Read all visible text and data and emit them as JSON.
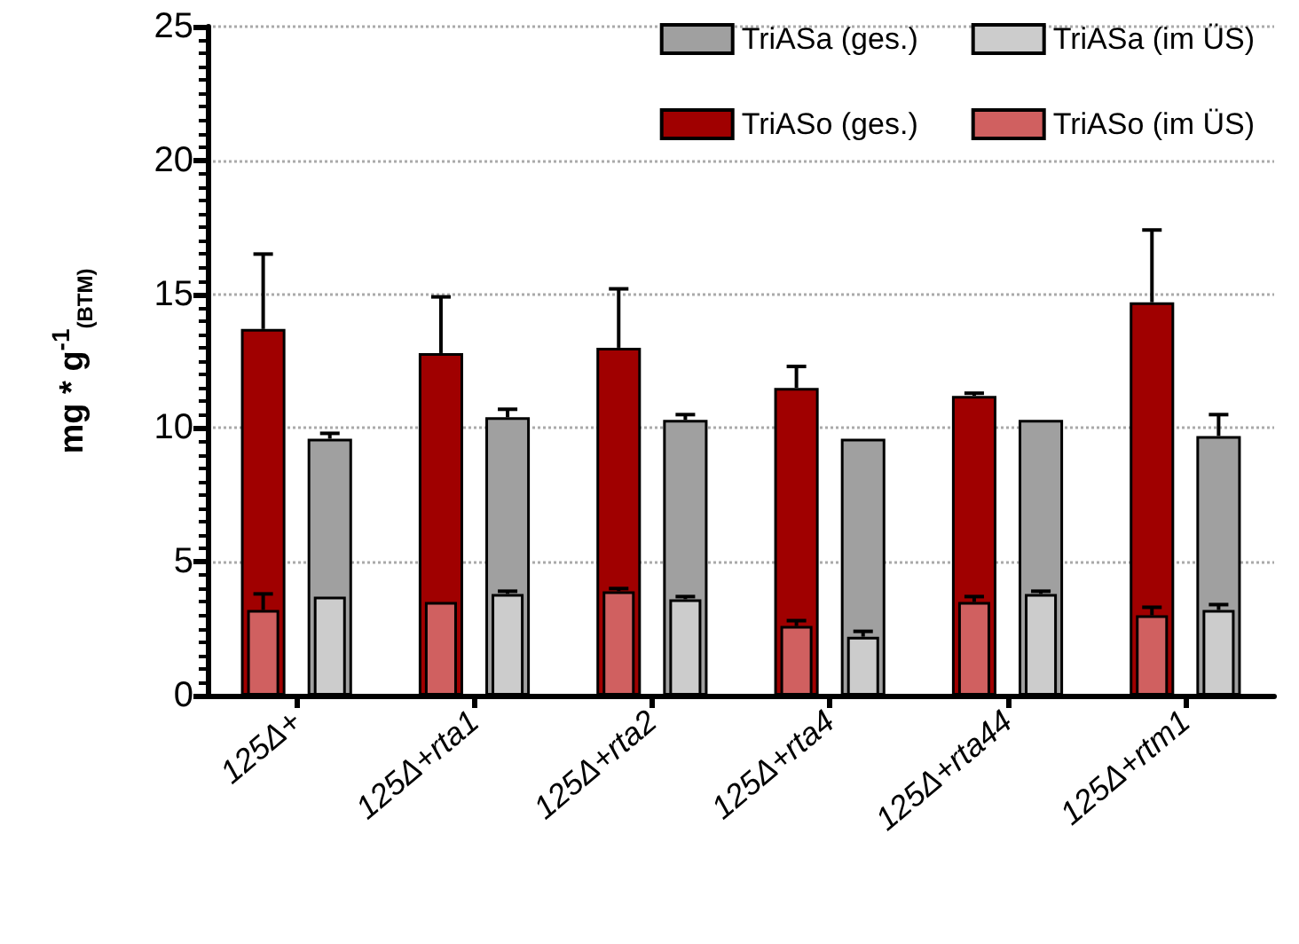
{
  "chart_data": {
    "type": "bar",
    "ylabel": "mg * g$^{-1}$$_{(BTM)}$",
    "categories": [
      "125Δ+",
      "125Δ+rta1",
      "125Δ+rta2",
      "125Δ+rta4",
      "125Δ+rta44",
      "125Δ+rtm1"
    ],
    "series": [
      {
        "name": "TriASo (ges.)",
        "color": "#a00000",
        "values": [
          13.7,
          12.8,
          13.0,
          11.5,
          11.2,
          14.7
        ],
        "errors": [
          [
            13.7,
            16.5
          ],
          [
            12.8,
            14.9
          ],
          [
            13.0,
            15.2
          ],
          [
            11.5,
            12.3
          ],
          [
            11.2,
            11.3
          ],
          [
            14.7,
            17.4
          ]
        ]
      },
      {
        "name": "TriASa (ges.)",
        "color": "#a0a0a0",
        "values": [
          9.6,
          10.4,
          10.3,
          9.6,
          10.3,
          9.7
        ],
        "errors": [
          [
            9.6,
            9.8
          ],
          [
            10.4,
            10.7
          ],
          [
            10.3,
            10.5
          ],
          null,
          null,
          [
            9.7,
            10.5
          ]
        ]
      },
      {
        "name": "TriASo (im ÜS)",
        "color": "#d06060",
        "values": [
          3.2,
          3.5,
          3.9,
          2.6,
          3.5,
          3.0
        ],
        "errors": [
          [
            3.2,
            3.8
          ],
          null,
          [
            3.9,
            4.0
          ],
          [
            2.6,
            2.8
          ],
          [
            3.5,
            3.7
          ],
          [
            3.0,
            3.3
          ]
        ]
      },
      {
        "name": "TriASa (im ÜS)",
        "color": "#cccccc",
        "values": [
          3.7,
          3.8,
          3.6,
          2.2,
          3.8,
          3.2
        ],
        "errors": [
          null,
          [
            3.8,
            3.9
          ],
          [
            3.6,
            3.7
          ],
          [
            2.2,
            2.4
          ],
          [
            3.8,
            3.9
          ],
          [
            3.2,
            3.4
          ]
        ]
      }
    ],
    "ylim": [
      0,
      25
    ],
    "yticks": [
      0,
      5,
      10,
      15,
      20,
      25
    ],
    "grid": "y",
    "legend": "top right"
  }
}
